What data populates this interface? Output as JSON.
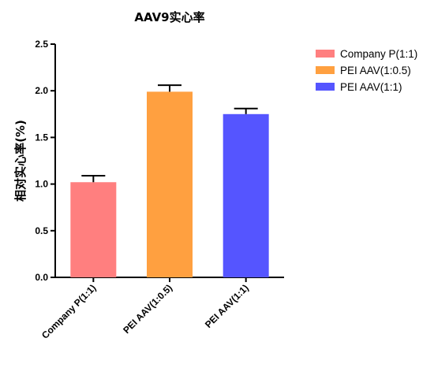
{
  "colors": {
    "axis": "#000000",
    "series": [
      "#FF7F7F",
      "#FFA040",
      "#5555FF"
    ]
  },
  "chart_data": {
    "type": "bar",
    "title": "AAV9实心率",
    "ylabel": "相对实心率(%)",
    "xlabel": "",
    "ylim": [
      0,
      2.5
    ],
    "yticks": [
      "0.0",
      "0.5",
      "1.0",
      "1.5",
      "2.0",
      "2.5"
    ],
    "categories": [
      "Company P(1:1)",
      "PEI AAV(1:0.5)",
      "PEI AAV(1:1)"
    ],
    "values": [
      1.02,
      1.99,
      1.75
    ],
    "error": [
      0.07,
      0.07,
      0.06
    ],
    "legend": [
      "Company P(1:1)",
      "PEI AAV(1:0.5)",
      "PEI AAV(1:1)"
    ],
    "legend_position": "top-right",
    "grid": false
  }
}
